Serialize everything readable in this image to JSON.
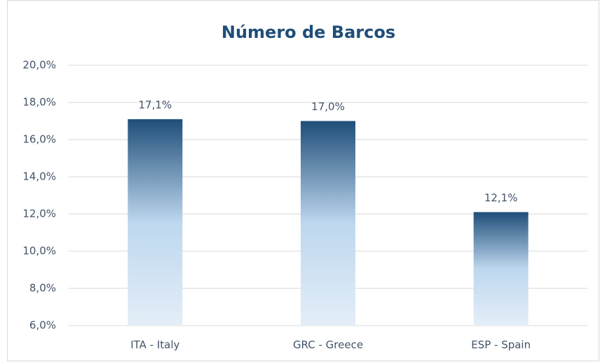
{
  "chart_data": {
    "type": "bar",
    "title": "Número de Barcos",
    "categories": [
      "ITA - Italy",
      "GRC - Greece",
      "ESP - Spain"
    ],
    "values": [
      17.1,
      17.0,
      12.1
    ],
    "value_labels": [
      "17,1%",
      "17,0%",
      "12,1%"
    ],
    "color": "#1f4e79",
    "ylim": [
      6,
      20
    ],
    "yticks": [
      {
        "value": 6,
        "label": "6,0%"
      },
      {
        "value": 8,
        "label": "8,0%"
      },
      {
        "value": 10,
        "label": "10,0%"
      },
      {
        "value": 12,
        "label": "12,0%"
      },
      {
        "value": 14,
        "label": "14,0%"
      },
      {
        "value": 16,
        "label": "16,0%"
      },
      {
        "value": 18,
        "label": "18,0%"
      },
      {
        "value": 20,
        "label": "20,0%"
      }
    ],
    "grid": true
  }
}
